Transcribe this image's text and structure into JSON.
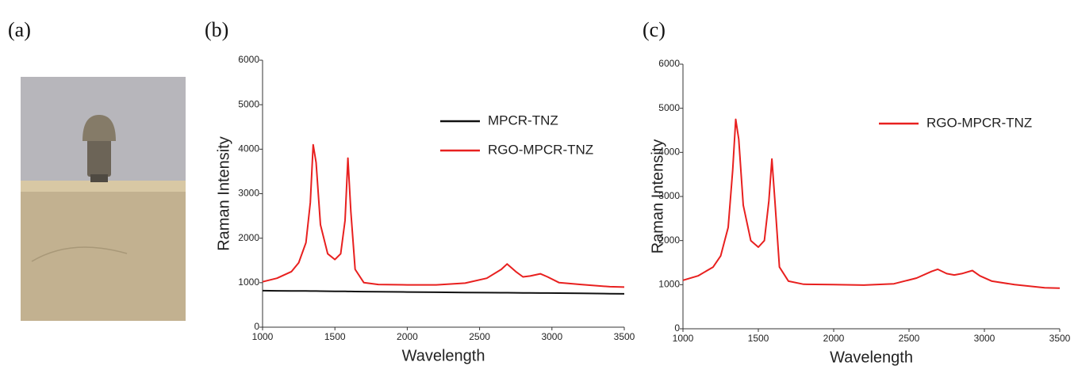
{
  "panels": [
    "(a)",
    "(b)",
    "(c)"
  ],
  "chart_data": [
    {
      "type": "line",
      "x_label": "Wavelength",
      "y_label": "Raman Intensity",
      "x": [
        1000,
        1100,
        1200,
        1250,
        1300,
        1330,
        1350,
        1370,
        1400,
        1450,
        1500,
        1540,
        1570,
        1590,
        1610,
        1640,
        1700,
        1800,
        2000,
        2200,
        2400,
        2550,
        2650,
        2690,
        2750,
        2800,
        2850,
        2920,
        2970,
        3050,
        3200,
        3400,
        3500
      ],
      "series": [
        {
          "name": "MPCR-TNZ",
          "color": "#111111",
          "values": [
            820,
            818,
            815,
            814,
            813,
            812,
            812,
            811,
            810,
            808,
            806,
            805,
            804,
            803,
            803,
            802,
            800,
            797,
            790,
            785,
            780,
            777,
            775,
            774,
            772,
            771,
            770,
            768,
            767,
            765,
            760,
            754,
            750
          ]
        },
        {
          "name": "RGO-MPCR-TNZ",
          "color": "#e8201f",
          "values": [
            1020,
            1100,
            1250,
            1450,
            1900,
            2800,
            4100,
            3700,
            2300,
            1650,
            1520,
            1650,
            2400,
            3800,
            2600,
            1300,
            1000,
            960,
            950,
            950,
            990,
            1100,
            1300,
            1420,
            1250,
            1130,
            1150,
            1200,
            1130,
            1000,
            960,
            910,
            900
          ]
        }
      ],
      "xlim": [
        1000,
        3500
      ],
      "xticks": [
        1000,
        1500,
        2000,
        2500,
        3000,
        3500
      ],
      "ylim": [
        0,
        6000
      ],
      "yticks": [
        0,
        1000,
        2000,
        3000,
        4000,
        5000,
        6000
      ],
      "legend": "upper right",
      "grid": false
    },
    {
      "type": "line",
      "x_label": "Wavelength",
      "y_label": "Raman Intensity",
      "x": [
        1000,
        1100,
        1200,
        1250,
        1300,
        1330,
        1350,
        1370,
        1400,
        1450,
        1500,
        1540,
        1570,
        1590,
        1610,
        1640,
        1700,
        1800,
        2000,
        2200,
        2400,
        2550,
        2650,
        2690,
        2750,
        2800,
        2850,
        2920,
        2970,
        3050,
        3200,
        3400,
        3500
      ],
      "series": [
        {
          "name": "RGO-MPCR-TNZ",
          "color": "#e8201f",
          "values": [
            1100,
            1200,
            1400,
            1650,
            2300,
            3600,
            4750,
            4300,
            2800,
            2000,
            1850,
            2000,
            2900,
            3850,
            2900,
            1400,
            1080,
            1010,
            1000,
            990,
            1020,
            1150,
            1300,
            1350,
            1250,
            1220,
            1250,
            1320,
            1200,
            1080,
            1000,
            930,
            920
          ]
        }
      ],
      "xlim": [
        1000,
        3500
      ],
      "xticks": [
        1000,
        1500,
        2000,
        2500,
        3000,
        3500
      ],
      "ylim": [
        0,
        6000
      ],
      "yticks": [
        0,
        1000,
        2000,
        3000,
        4000,
        5000,
        6000
      ],
      "legend": "upper right",
      "grid": false
    }
  ]
}
